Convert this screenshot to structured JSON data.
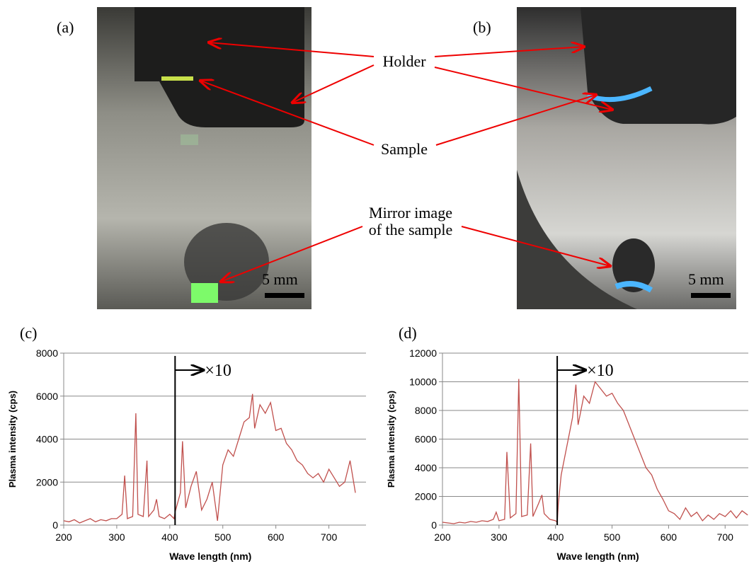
{
  "photos": {
    "a_label": "(a)",
    "b_label": "(b)",
    "scale_a": "5 mm",
    "scale_b": "5 mm"
  },
  "annotations": {
    "holder": "Holder",
    "sample": "Sample",
    "mirror_line1": "Mirror image",
    "mirror_line2": "of the sample"
  },
  "chart_data": [
    {
      "type": "line",
      "panel_label": "(c)",
      "y_label": "Plasma intensity (cps)",
      "x_label": "Wave length (nm)",
      "color": "#c0504d",
      "grid": true,
      "xlim": [
        200,
        770
      ],
      "ylim": [
        0,
        8000
      ],
      "xticks": [
        200,
        300,
        400,
        500,
        600,
        700
      ],
      "yticks": [
        0,
        2000,
        4000,
        6000,
        8000
      ],
      "marker_x": 410,
      "annotation": "×10",
      "x": [
        200,
        210,
        220,
        230,
        240,
        250,
        260,
        270,
        280,
        290,
        300,
        310,
        315,
        320,
        330,
        336,
        340,
        350,
        357,
        360,
        370,
        375,
        380,
        390,
        400,
        408,
        410,
        420,
        424,
        430,
        440,
        450,
        460,
        470,
        480,
        490,
        500,
        510,
        520,
        530,
        540,
        550,
        556,
        560,
        570,
        580,
        590,
        600,
        610,
        620,
        630,
        640,
        650,
        660,
        670,
        680,
        690,
        700,
        710,
        720,
        730,
        740,
        750
      ],
      "values": [
        200,
        150,
        250,
        100,
        200,
        300,
        150,
        250,
        200,
        300,
        300,
        500,
        2300,
        300,
        400,
        5200,
        500,
        400,
        3000,
        400,
        700,
        1200,
        400,
        300,
        500,
        300,
        600,
        1500,
        3900,
        800,
        1800,
        2500,
        700,
        1200,
        2000,
        200,
        2800,
        3500,
        3200,
        4000,
        4800,
        5000,
        6100,
        4500,
        5600,
        5200,
        5700,
        4400,
        4500,
        3800,
        3500,
        3000,
        2800,
        2400,
        2200,
        2400,
        2000,
        2600,
        2200,
        1800,
        2000,
        3000,
        1500
      ]
    },
    {
      "type": "line",
      "panel_label": "(d)",
      "y_label": "Plasma intensity (cps)",
      "x_label": "Wave length (nm)",
      "color": "#c0504d",
      "grid": true,
      "xlim": [
        200,
        741
      ],
      "ylim": [
        0,
        12000
      ],
      "xticks": [
        200,
        300,
        400,
        500,
        600,
        700
      ],
      "yticks": [
        0,
        2000,
        4000,
        6000,
        8000,
        10000,
        12000
      ],
      "marker_x": 403,
      "annotation": "×10",
      "x": [
        200,
        210,
        220,
        230,
        240,
        250,
        260,
        270,
        280,
        290,
        295,
        300,
        310,
        314,
        320,
        330,
        335,
        340,
        350,
        356,
        360,
        370,
        376,
        380,
        390,
        400,
        403,
        405,
        410,
        420,
        430,
        436,
        440,
        450,
        460,
        470,
        480,
        490,
        500,
        510,
        520,
        530,
        540,
        550,
        560,
        570,
        580,
        590,
        600,
        610,
        620,
        630,
        640,
        650,
        660,
        670,
        680,
        690,
        700,
        710,
        720,
        730,
        740
      ],
      "values": [
        200,
        150,
        100,
        200,
        150,
        250,
        200,
        300,
        250,
        400,
        900,
        300,
        400,
        5100,
        500,
        800,
        10200,
        600,
        700,
        5700,
        600,
        1500,
        2100,
        800,
        400,
        300,
        200,
        1500,
        3500,
        5500,
        7500,
        9800,
        7000,
        9000,
        8500,
        10000,
        9500,
        9000,
        9200,
        8500,
        8000,
        7000,
        6000,
        5000,
        4000,
        3500,
        2500,
        1800,
        1000,
        800,
        400,
        1200,
        600,
        900,
        300,
        700,
        400,
        800,
        600,
        1000,
        500,
        1000,
        700
      ]
    }
  ]
}
